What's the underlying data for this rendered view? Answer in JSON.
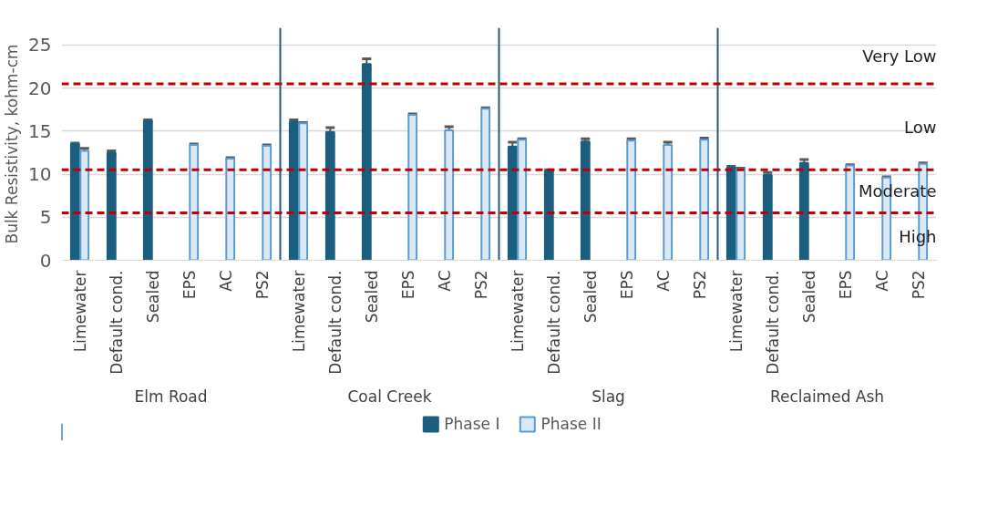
{
  "chart_data": {
    "type": "bar",
    "ylabel": "Bulk Resistivity, kohm-cm",
    "categories": [
      "Limewater",
      "Default cond.",
      "Sealed",
      "EPS",
      "AC",
      "PS2",
      "Limewater",
      "Default cond.",
      "Sealed",
      "EPS",
      "AC",
      "PS2",
      "Limewater",
      "Default cond.",
      "Sealed",
      "EPS",
      "AC",
      "PS2",
      "Limewater",
      "Default cond.",
      "Sealed",
      "EPS",
      "AC",
      "PS2"
    ],
    "series": [
      {
        "name": "Phase I",
        "color": "#1a5e80",
        "values": [
          13.5,
          12.5,
          16.2,
          null,
          null,
          null,
          16.1,
          14.9,
          22.8,
          null,
          null,
          null,
          13.2,
          10.4,
          13.8,
          null,
          null,
          null,
          10.8,
          9.9,
          11.3,
          null,
          null,
          null
        ],
        "errors": [
          0.1,
          0.2,
          0.1,
          null,
          null,
          null,
          0.2,
          0.5,
          0.6,
          null,
          null,
          null,
          0.5,
          0.1,
          0.3,
          null,
          null,
          null,
          0.1,
          0.3,
          0.4,
          null,
          null,
          null
        ]
      },
      {
        "name": "Phase II",
        "color": "#dbe9f7",
        "values": [
          12.7,
          null,
          null,
          13.4,
          11.8,
          13.3,
          15.9,
          null,
          null,
          16.9,
          15.1,
          17.6,
          14.0,
          null,
          null,
          13.9,
          13.4,
          14.0,
          10.6,
          null,
          null,
          11.0,
          9.6,
          11.2
        ],
        "errors": [
          0.3,
          null,
          null,
          0.1,
          0.1,
          0.1,
          0.1,
          null,
          null,
          0.1,
          0.4,
          0.1,
          0.1,
          null,
          null,
          0.2,
          0.3,
          0.2,
          0.1,
          null,
          null,
          0.1,
          0.1,
          0.1
        ]
      }
    ],
    "ylim": [
      0,
      27
    ],
    "yticks": [
      0,
      5,
      10,
      15,
      20,
      25
    ],
    "grid": "y",
    "legend": "bottom",
    "ref_lines": [
      {
        "axis": "y",
        "value": 20.5,
        "color": "#c00000",
        "line_style": "dashed"
      },
      {
        "axis": "y",
        "value": 10.5,
        "color": "#c00000",
        "line_style": "dashed"
      },
      {
        "axis": "y",
        "value": 5.5,
        "color": "#c00000",
        "line_style": "dashed"
      }
    ],
    "annotations": [
      "Elm Road",
      "Coal Creek",
      "Slag",
      "Reclaimed Ash",
      "Very Low",
      "Low",
      "Moderate",
      "High"
    ]
  }
}
